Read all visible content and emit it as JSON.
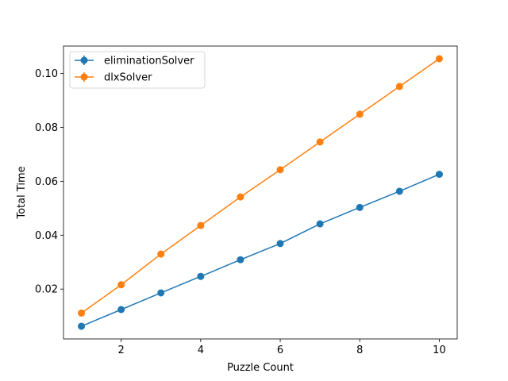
{
  "chart_data": {
    "type": "line",
    "title": "",
    "xlabel": "Puzzle Count",
    "ylabel": "Total Time",
    "xlim": [
      0.55,
      10.45
    ],
    "ylim": [
      0.0015,
      0.1102
    ],
    "xticks": [
      2,
      4,
      6,
      8,
      10
    ],
    "yticks": [
      0.02,
      0.04,
      0.06,
      0.08,
      0.1
    ],
    "ytick_labels": [
      "0.02",
      "0.04",
      "0.06",
      "0.08",
      "0.10"
    ],
    "grid": false,
    "legend_position": "top-left",
    "x": [
      1,
      2,
      3,
      4,
      5,
      6,
      7,
      8,
      9,
      10
    ],
    "series": [
      {
        "name": "eliminationSolver",
        "color": "#1f77b4",
        "values": [
          0.0062,
          0.0124,
          0.0186,
          0.0247,
          0.0309,
          0.0369,
          0.0442,
          0.0503,
          0.0563,
          0.0626
        ]
      },
      {
        "name": "dlxSolver",
        "color": "#ff7f0e",
        "values": [
          0.0111,
          0.0216,
          0.033,
          0.0436,
          0.0542,
          0.0643,
          0.0746,
          0.0849,
          0.0952,
          0.1055
        ]
      }
    ]
  }
}
